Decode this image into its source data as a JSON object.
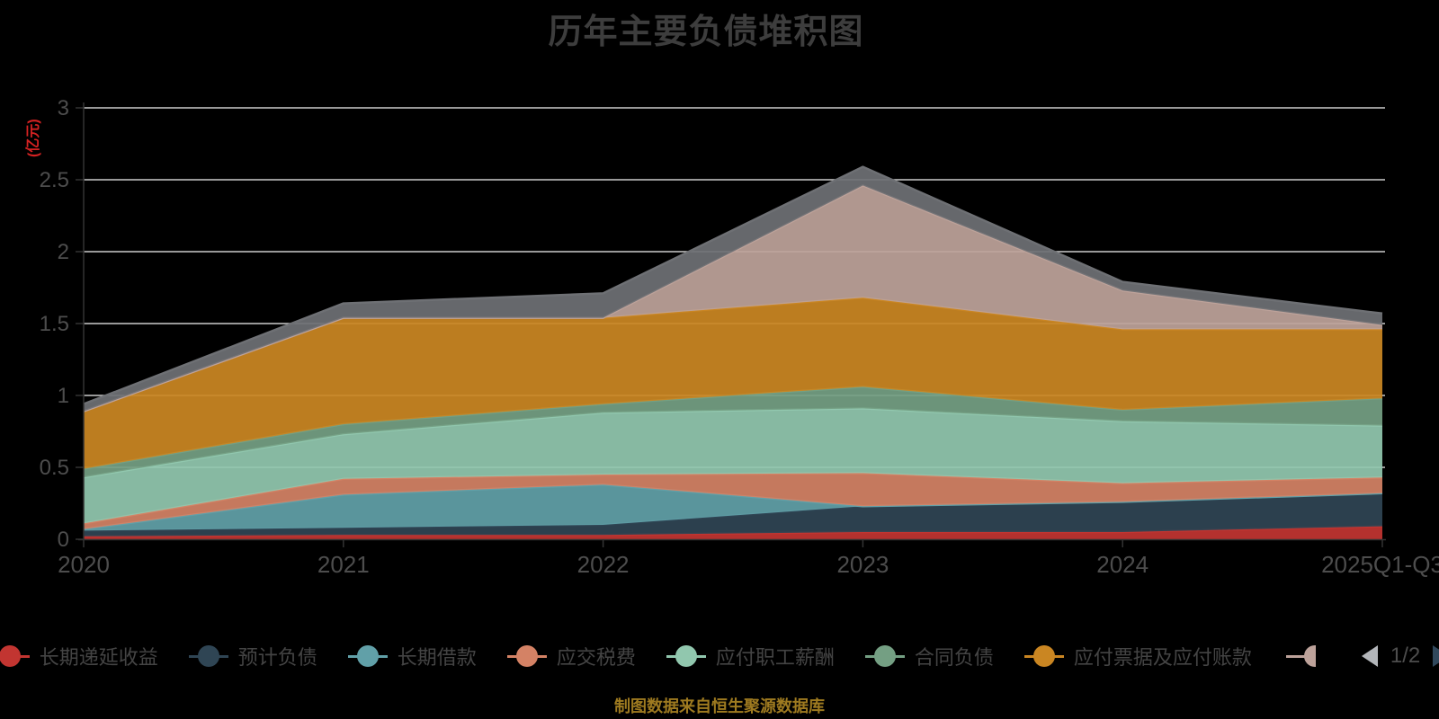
{
  "title": "历年主要负债堆积图",
  "footer": "制图数据来自恒生聚源数据库",
  "y_axis": {
    "name": "(亿元)",
    "name_color": "#d42222",
    "tick_label_color": "#4d4d4d"
  },
  "legend": {
    "page_indicator": "1/2",
    "prev_icon": "left-triangle",
    "next_icon": "right-triangle",
    "overflow_item_color": "#bda29a"
  },
  "chart_data": {
    "type": "area",
    "stacked": true,
    "title": "历年主要负债堆积图",
    "ylabel": "(亿元)",
    "ylim": [
      0,
      3
    ],
    "y_ticks": [
      0,
      0.5,
      1,
      1.5,
      2,
      2.5,
      3
    ],
    "grid": true,
    "legend_position": "bottom",
    "categories": [
      "2020",
      "2021",
      "2022",
      "2023",
      "2024",
      "2025Q1-Q3"
    ],
    "series": [
      {
        "name": "长期递延收益",
        "color": "#c23531",
        "legend_visible": true,
        "values": [
          0.02,
          0.03,
          0.03,
          0.05,
          0.05,
          0.09
        ]
      },
      {
        "name": "预计负债",
        "color": "#2f4554",
        "legend_visible": true,
        "values": [
          0.04,
          0.05,
          0.07,
          0.18,
          0.21,
          0.23
        ]
      },
      {
        "name": "长期借款",
        "color": "#61a0a8",
        "legend_visible": true,
        "values": [
          0.01,
          0.23,
          0.28,
          0.0,
          0.0,
          0.0
        ]
      },
      {
        "name": "应交税费",
        "color": "#d48265",
        "legend_visible": true,
        "values": [
          0.04,
          0.11,
          0.07,
          0.23,
          0.13,
          0.11
        ]
      },
      {
        "name": "应付职工薪酬",
        "color": "#91c7ae",
        "legend_visible": true,
        "values": [
          0.32,
          0.31,
          0.43,
          0.45,
          0.43,
          0.36
        ]
      },
      {
        "name": "合同负债",
        "color": "#749f83",
        "legend_visible": true,
        "values": [
          0.06,
          0.07,
          0.06,
          0.15,
          0.08,
          0.19
        ]
      },
      {
        "name": "应付票据及应付账款",
        "color": "#ca8622",
        "legend_visible": true,
        "values": [
          0.4,
          0.74,
          0.6,
          0.62,
          0.56,
          0.48
        ]
      },
      {
        "name": "",
        "color": "#bda29a",
        "legend_visible": false,
        "values": [
          0.0,
          0.0,
          0.0,
          0.78,
          0.27,
          0.03
        ]
      },
      {
        "name": "",
        "color": "#6e7074",
        "legend_visible": false,
        "values": [
          0.05,
          0.1,
          0.17,
          0.13,
          0.06,
          0.08
        ]
      }
    ]
  }
}
